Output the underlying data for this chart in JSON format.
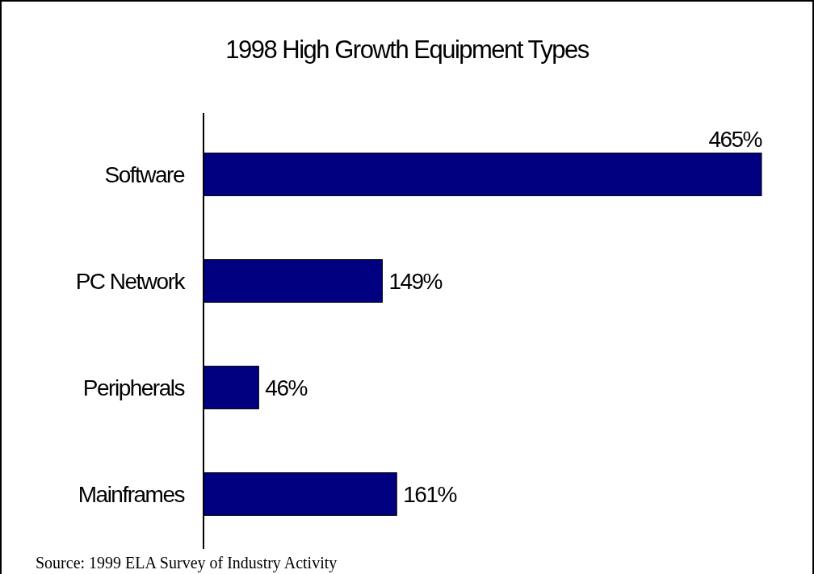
{
  "chart_data": {
    "type": "bar",
    "orientation": "horizontal",
    "title": "1998 High Growth Equipment Types",
    "categories": [
      "Software",
      "PC Network",
      "Peripherals",
      "Mainframes"
    ],
    "values": [
      465,
      149,
      46,
      161
    ],
    "value_labels": [
      "465%",
      "149%",
      "46%",
      "161%"
    ],
    "color": "#000080",
    "annotations": [
      "Source: 1999 ELA Survey of Industry Activity"
    ]
  }
}
